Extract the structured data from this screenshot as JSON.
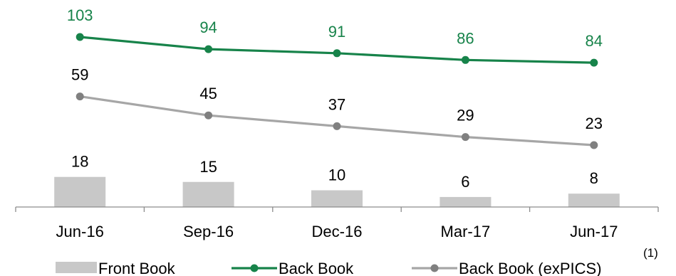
{
  "chart_data": {
    "type": "bar",
    "categories": [
      "Jun-16",
      "Sep-16",
      "Dec-16",
      "Mar-17",
      "Jun-17"
    ],
    "series": [
      {
        "name": "Front Book",
        "type": "bar",
        "values": [
          18,
          15,
          10,
          6,
          8
        ],
        "color": "#c8c8c8"
      },
      {
        "name": "Back Book",
        "type": "line",
        "values": [
          103,
          94,
          91,
          86,
          84
        ],
        "color": "#17834a"
      },
      {
        "name": "Back Book (exPICS)",
        "type": "line",
        "values": [
          59,
          45,
          37,
          29,
          23
        ],
        "color": "#a6a6a6",
        "marker_color": "#808080"
      }
    ],
    "title": "",
    "xlabel": "",
    "ylabel": "",
    "legend_placement": "bottom",
    "legend_note": "(1)",
    "grid": false,
    "label_colors": {
      "Back Book": "#17834a",
      "Front Book": "#000000",
      "Back Book (exPICS)": "#000000"
    }
  }
}
